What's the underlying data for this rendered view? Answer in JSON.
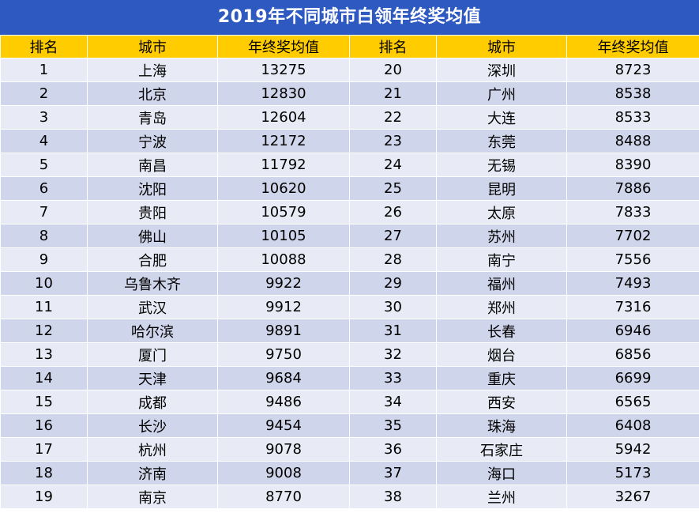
{
  "title": "2019年不同城市白领年终奖均值",
  "headers": [
    "排名",
    "城市",
    "年终奖均值",
    "排名",
    "城市",
    "年终奖均值"
  ],
  "rows": [
    [
      "1",
      "上海",
      "13275",
      "20",
      "深圳",
      "8723"
    ],
    [
      "2",
      "北京",
      "12830",
      "21",
      "广州",
      "8538"
    ],
    [
      "3",
      "青岛",
      "12604",
      "22",
      "大连",
      "8533"
    ],
    [
      "4",
      "宁波",
      "12172",
      "23",
      "东莞",
      "8488"
    ],
    [
      "5",
      "南昌",
      "11792",
      "24",
      "无锡",
      "8390"
    ],
    [
      "6",
      "沈阳",
      "10620",
      "25",
      "昆明",
      "7886"
    ],
    [
      "7",
      "贵阳",
      "10579",
      "26",
      "太原",
      "7833"
    ],
    [
      "8",
      "佛山",
      "10105",
      "27",
      "苏州",
      "7702"
    ],
    [
      "9",
      "合肥",
      "10088",
      "28",
      "南宁",
      "7556"
    ],
    [
      "10",
      "乌鲁木齐",
      "9922",
      "29",
      "福州",
      "7493"
    ],
    [
      "11",
      "武汉",
      "9912",
      "30",
      "郑州",
      "7316"
    ],
    [
      "12",
      "哈尔滨",
      "9891",
      "31",
      "长春",
      "6946"
    ],
    [
      "13",
      "厦门",
      "9750",
      "32",
      "烟台",
      "6856"
    ],
    [
      "14",
      "天津",
      "9684",
      "33",
      "重庆",
      "6699"
    ],
    [
      "15",
      "成都",
      "9486",
      "34",
      "西安",
      "6565"
    ],
    [
      "16",
      "长沙",
      "9454",
      "35",
      "珠海",
      "6408"
    ],
    [
      "17",
      "杭州",
      "9078",
      "36",
      "石家庄",
      "5942"
    ],
    [
      "18",
      "济南",
      "9008",
      "37",
      "海口",
      "5173"
    ],
    [
      "19",
      "南京",
      "8770",
      "38",
      "兰州",
      "3267"
    ]
  ],
  "colors": {
    "title_bg": "#2d59c0",
    "header_bg": "#ffcc00",
    "row_light": "#e8ebf5",
    "row_dark": "#cfd5ea"
  }
}
